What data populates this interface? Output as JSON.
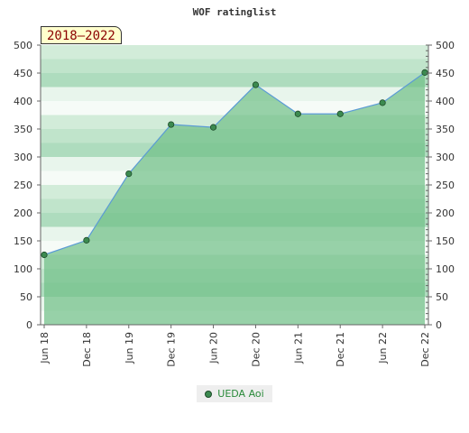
{
  "chart_data": {
    "type": "area",
    "title": "WOF ratinglist",
    "period_label": "2018–2022",
    "categories": [
      "Jun 18",
      "Dec 18",
      "Jun 19",
      "Dec 19",
      "Jun 20",
      "Dec 20",
      "Jun 21",
      "Dec 21",
      "Jun 22",
      "Dec 22"
    ],
    "series": [
      {
        "name": "UEDA Aoi",
        "values": [
          125,
          151,
          270,
          358,
          353,
          429,
          377,
          377,
          397,
          451
        ]
      }
    ],
    "ylim": [
      0,
      500
    ],
    "yticks": [
      0,
      50,
      100,
      150,
      200,
      250,
      300,
      350,
      400,
      450,
      500
    ],
    "ytick_labels": [
      "0",
      "50",
      "100",
      "150",
      "200",
      "250",
      "300",
      "350",
      "400",
      "450",
      "500"
    ],
    "xlabel": "",
    "ylabel": "",
    "legend_position": "bottom-center",
    "colors": {
      "line": "#5b9bd5",
      "marker": "#3c8a50",
      "marker_edge": "#1c4a28",
      "area": "#6fbf86"
    }
  }
}
